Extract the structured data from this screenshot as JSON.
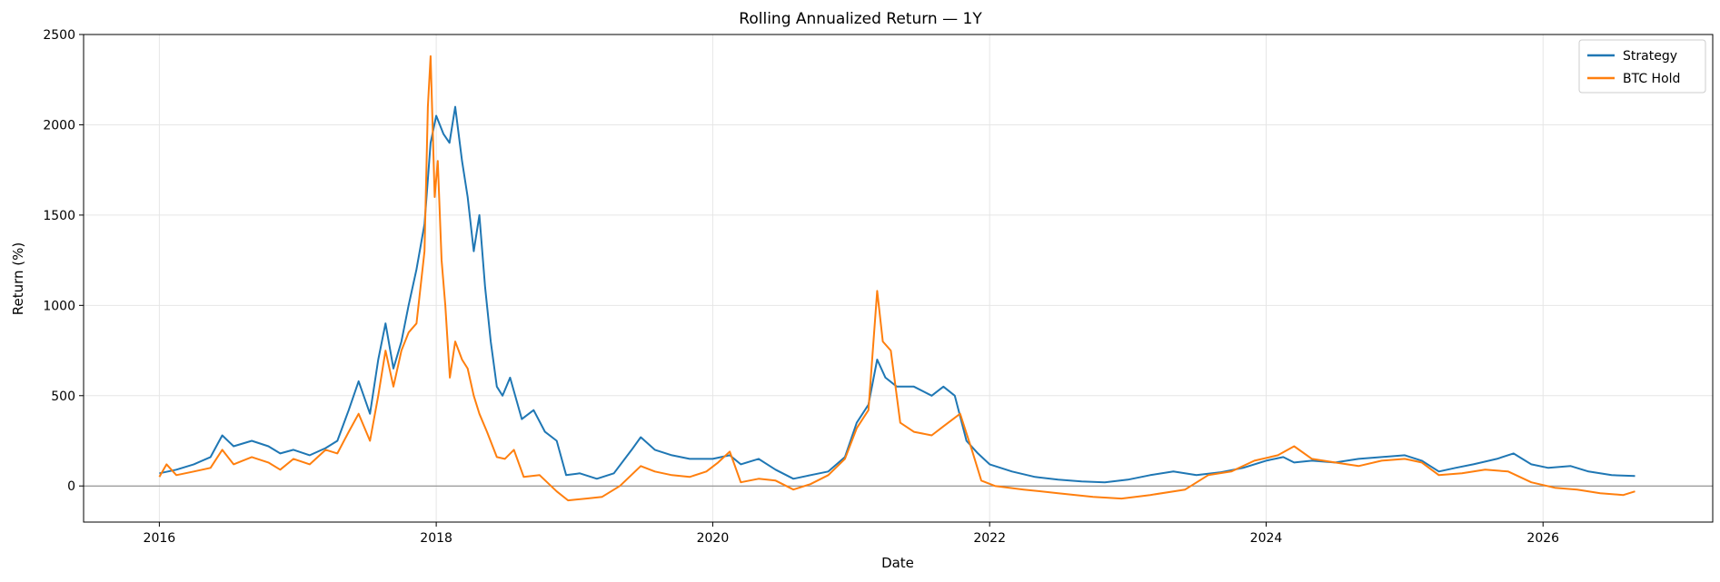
{
  "chart_data": {
    "type": "line",
    "title": "Rolling Annualized Return — 1Y",
    "xlabel": "Date",
    "ylabel": "Return (%)",
    "xlim": [
      "2015-06-15",
      "2027-03-25"
    ],
    "ylim": [
      -200,
      2500
    ],
    "x_ticks": [
      "2016",
      "2018",
      "2020",
      "2022",
      "2024",
      "2026"
    ],
    "y_ticks": [
      "0",
      "500",
      "1000",
      "1500",
      "2000",
      "2500"
    ],
    "grid": true,
    "zero_line": true,
    "legend": "top-right",
    "series": [
      {
        "name": "Strategy",
        "color": "#1f77b4",
        "points": [
          [
            "2016-01-01",
            70
          ],
          [
            "2016-02-15",
            90
          ],
          [
            "2016-04-01",
            120
          ],
          [
            "2016-05-15",
            160
          ],
          [
            "2016-06-15",
            280
          ],
          [
            "2016-07-15",
            220
          ],
          [
            "2016-09-01",
            250
          ],
          [
            "2016-10-15",
            220
          ],
          [
            "2016-11-15",
            180
          ],
          [
            "2016-12-20",
            200
          ],
          [
            "2017-02-01",
            170
          ],
          [
            "2017-03-15",
            210
          ],
          [
            "2017-04-15",
            250
          ],
          [
            "2017-05-15",
            420
          ],
          [
            "2017-06-10",
            580
          ],
          [
            "2017-07-10",
            400
          ],
          [
            "2017-08-01",
            700
          ],
          [
            "2017-08-20",
            900
          ],
          [
            "2017-09-10",
            650
          ],
          [
            "2017-10-01",
            800
          ],
          [
            "2017-10-20",
            1000
          ],
          [
            "2017-11-10",
            1200
          ],
          [
            "2017-12-01",
            1450
          ],
          [
            "2017-12-17",
            1900
          ],
          [
            "2018-01-01",
            2050
          ],
          [
            "2018-01-20",
            1950
          ],
          [
            "2018-02-05",
            1900
          ],
          [
            "2018-02-20",
            2100
          ],
          [
            "2018-03-10",
            1800
          ],
          [
            "2018-03-25",
            1600
          ],
          [
            "2018-04-10",
            1300
          ],
          [
            "2018-04-25",
            1500
          ],
          [
            "2018-05-10",
            1100
          ],
          [
            "2018-05-25",
            800
          ],
          [
            "2018-06-10",
            550
          ],
          [
            "2018-06-25",
            500
          ],
          [
            "2018-07-15",
            600
          ],
          [
            "2018-08-15",
            370
          ],
          [
            "2018-09-15",
            420
          ],
          [
            "2018-10-15",
            300
          ],
          [
            "2018-11-15",
            250
          ],
          [
            "2018-12-10",
            60
          ],
          [
            "2019-01-15",
            70
          ],
          [
            "2019-03-01",
            40
          ],
          [
            "2019-04-15",
            70
          ],
          [
            "2019-06-01",
            200
          ],
          [
            "2019-06-25",
            270
          ],
          [
            "2019-08-01",
            200
          ],
          [
            "2019-09-15",
            170
          ],
          [
            "2019-11-01",
            150
          ],
          [
            "2020-01-01",
            150
          ],
          [
            "2020-02-15",
            170
          ],
          [
            "2020-03-15",
            120
          ],
          [
            "2020-05-01",
            150
          ],
          [
            "2020-06-15",
            90
          ],
          [
            "2020-08-01",
            40
          ],
          [
            "2020-09-15",
            60
          ],
          [
            "2020-11-01",
            80
          ],
          [
            "2020-12-15",
            160
          ],
          [
            "2021-01-15",
            350
          ],
          [
            "2021-02-15",
            450
          ],
          [
            "2021-03-10",
            700
          ],
          [
            "2021-04-01",
            600
          ],
          [
            "2021-05-01",
            550
          ],
          [
            "2021-06-15",
            550
          ],
          [
            "2021-08-01",
            500
          ],
          [
            "2021-09-01",
            550
          ],
          [
            "2021-10-01",
            500
          ],
          [
            "2021-11-01",
            250
          ],
          [
            "2021-12-01",
            180
          ],
          [
            "2022-01-01",
            120
          ],
          [
            "2022-03-01",
            80
          ],
          [
            "2022-05-01",
            50
          ],
          [
            "2022-07-01",
            35
          ],
          [
            "2022-09-01",
            25
          ],
          [
            "2022-11-01",
            20
          ],
          [
            "2023-01-01",
            35
          ],
          [
            "2023-03-01",
            60
          ],
          [
            "2023-05-01",
            80
          ],
          [
            "2023-07-01",
            60
          ],
          [
            "2023-09-01",
            75
          ],
          [
            "2023-11-01",
            100
          ],
          [
            "2024-01-01",
            140
          ],
          [
            "2024-02-15",
            160
          ],
          [
            "2024-03-15",
            130
          ],
          [
            "2024-05-01",
            140
          ],
          [
            "2024-07-01",
            130
          ],
          [
            "2024-09-01",
            150
          ],
          [
            "2024-11-01",
            160
          ],
          [
            "2025-01-01",
            170
          ],
          [
            "2025-02-15",
            140
          ],
          [
            "2025-04-01",
            80
          ],
          [
            "2025-05-15",
            100
          ],
          [
            "2025-07-01",
            120
          ],
          [
            "2025-09-01",
            150
          ],
          [
            "2025-10-15",
            180
          ],
          [
            "2025-12-01",
            120
          ],
          [
            "2026-01-15",
            100
          ],
          [
            "2026-03-15",
            110
          ],
          [
            "2026-05-01",
            80
          ],
          [
            "2026-07-01",
            60
          ],
          [
            "2026-09-01",
            55
          ]
        ]
      },
      {
        "name": "BTC Hold",
        "color": "#ff7f0e",
        "points": [
          [
            "2016-01-01",
            50
          ],
          [
            "2016-01-20",
            120
          ],
          [
            "2016-02-15",
            60
          ],
          [
            "2016-04-01",
            80
          ],
          [
            "2016-05-15",
            100
          ],
          [
            "2016-06-15",
            200
          ],
          [
            "2016-07-15",
            120
          ],
          [
            "2016-09-01",
            160
          ],
          [
            "2016-10-15",
            130
          ],
          [
            "2016-11-15",
            90
          ],
          [
            "2016-12-20",
            150
          ],
          [
            "2017-02-01",
            120
          ],
          [
            "2017-03-15",
            200
          ],
          [
            "2017-04-15",
            180
          ],
          [
            "2017-05-15",
            300
          ],
          [
            "2017-06-10",
            400
          ],
          [
            "2017-07-10",
            250
          ],
          [
            "2017-08-01",
            500
          ],
          [
            "2017-08-20",
            750
          ],
          [
            "2017-09-10",
            550
          ],
          [
            "2017-10-01",
            750
          ],
          [
            "2017-10-20",
            850
          ],
          [
            "2017-11-10",
            900
          ],
          [
            "2017-12-01",
            1300
          ],
          [
            "2017-12-10",
            2100
          ],
          [
            "2017-12-17",
            2380
          ],
          [
            "2017-12-28",
            1600
          ],
          [
            "2018-01-05",
            1800
          ],
          [
            "2018-01-15",
            1250
          ],
          [
            "2018-01-25",
            1000
          ],
          [
            "2018-02-06",
            600
          ],
          [
            "2018-02-20",
            800
          ],
          [
            "2018-03-10",
            700
          ],
          [
            "2018-03-25",
            650
          ],
          [
            "2018-04-10",
            500
          ],
          [
            "2018-04-25",
            400
          ],
          [
            "2018-05-15",
            300
          ],
          [
            "2018-06-10",
            160
          ],
          [
            "2018-07-01",
            150
          ],
          [
            "2018-07-25",
            200
          ],
          [
            "2018-08-20",
            50
          ],
          [
            "2018-10-01",
            60
          ],
          [
            "2018-11-15",
            -30
          ],
          [
            "2018-12-15",
            -80
          ],
          [
            "2019-02-01",
            -70
          ],
          [
            "2019-03-15",
            -60
          ],
          [
            "2019-05-01",
            0
          ],
          [
            "2019-06-25",
            110
          ],
          [
            "2019-08-01",
            80
          ],
          [
            "2019-09-15",
            60
          ],
          [
            "2019-11-01",
            50
          ],
          [
            "2019-12-15",
            80
          ],
          [
            "2020-01-15",
            130
          ],
          [
            "2020-02-15",
            190
          ],
          [
            "2020-03-15",
            20
          ],
          [
            "2020-05-01",
            40
          ],
          [
            "2020-06-15",
            30
          ],
          [
            "2020-08-01",
            -20
          ],
          [
            "2020-09-15",
            10
          ],
          [
            "2020-11-01",
            60
          ],
          [
            "2020-12-15",
            150
          ],
          [
            "2021-01-15",
            320
          ],
          [
            "2021-02-15",
            420
          ],
          [
            "2021-03-10",
            1080
          ],
          [
            "2021-03-25",
            800
          ],
          [
            "2021-04-15",
            750
          ],
          [
            "2021-05-10",
            350
          ],
          [
            "2021-06-15",
            300
          ],
          [
            "2021-08-01",
            280
          ],
          [
            "2021-09-01",
            330
          ],
          [
            "2021-10-15",
            400
          ],
          [
            "2021-11-15",
            200
          ],
          [
            "2021-12-10",
            30
          ],
          [
            "2022-01-15",
            0
          ],
          [
            "2022-04-01",
            -20
          ],
          [
            "2022-07-01",
            -40
          ],
          [
            "2022-10-01",
            -60
          ],
          [
            "2022-12-15",
            -70
          ],
          [
            "2023-03-01",
            -50
          ],
          [
            "2023-06-01",
            -20
          ],
          [
            "2023-08-01",
            60
          ],
          [
            "2023-10-01",
            80
          ],
          [
            "2023-12-01",
            140
          ],
          [
            "2024-02-01",
            170
          ],
          [
            "2024-03-15",
            220
          ],
          [
            "2024-05-01",
            150
          ],
          [
            "2024-07-01",
            130
          ],
          [
            "2024-09-01",
            110
          ],
          [
            "2024-11-01",
            140
          ],
          [
            "2025-01-01",
            150
          ],
          [
            "2025-02-15",
            130
          ],
          [
            "2025-04-01",
            60
          ],
          [
            "2025-06-01",
            70
          ],
          [
            "2025-08-01",
            90
          ],
          [
            "2025-10-01",
            80
          ],
          [
            "2025-12-01",
            20
          ],
          [
            "2026-02-01",
            -10
          ],
          [
            "2026-04-01",
            -20
          ],
          [
            "2026-06-01",
            -40
          ],
          [
            "2026-08-01",
            -50
          ],
          [
            "2026-09-01",
            -30
          ]
        ]
      }
    ]
  }
}
